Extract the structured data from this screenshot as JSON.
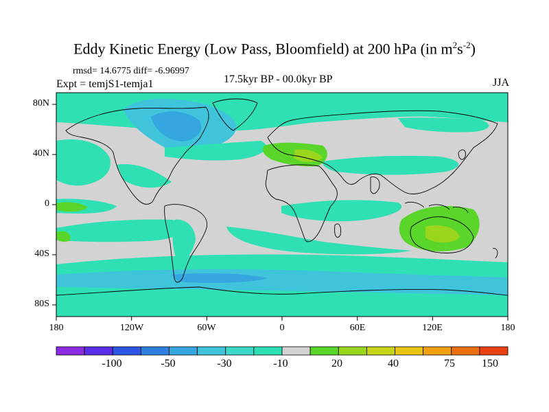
{
  "title_main": "Eddy Kinetic Energy (Low Pass, Bloomfield) at 200 hPa (in m",
  "title_sup1": "2",
  "title_mid": "s",
  "title_sup2": "-2",
  "title_end": ")",
  "stats": "rmsd= 14.6775 diff= -6.96997",
  "experiment": "Expt = temjS1-temja1",
  "period": "17.5kyr BP - 00.0kyr BP",
  "season": "JJA",
  "lat_labels": [
    "80N",
    "40N",
    "0",
    "40S",
    "80S"
  ],
  "lon_labels": [
    "180",
    "120W",
    "60W",
    "0",
    "60E",
    "120E",
    "180"
  ],
  "colorbar": {
    "labels": [
      "-100",
      "-50",
      "-30",
      "-10",
      "20",
      "40",
      "75",
      "150"
    ],
    "colors": [
      "#8a2be2",
      "#5a2de6",
      "#2f55e6",
      "#2f7fe0",
      "#35a6e0",
      "#3fc4dc",
      "#3cd8c8",
      "#2fe0b4",
      "#d3d3d3",
      "#5ad62a",
      "#9ad61e",
      "#c8d418",
      "#e8c414",
      "#f0a010",
      "#ec7010",
      "#e84010"
    ]
  },
  "map_colors": {
    "background": "#d3d3d3",
    "weak_negative": "#2fe0b4",
    "moderate_negative": "#3fc4dc",
    "strong_negative": "#35a6e0",
    "weak_positive": "#5ad62a",
    "moderate_positive": "#9ad61e"
  }
}
